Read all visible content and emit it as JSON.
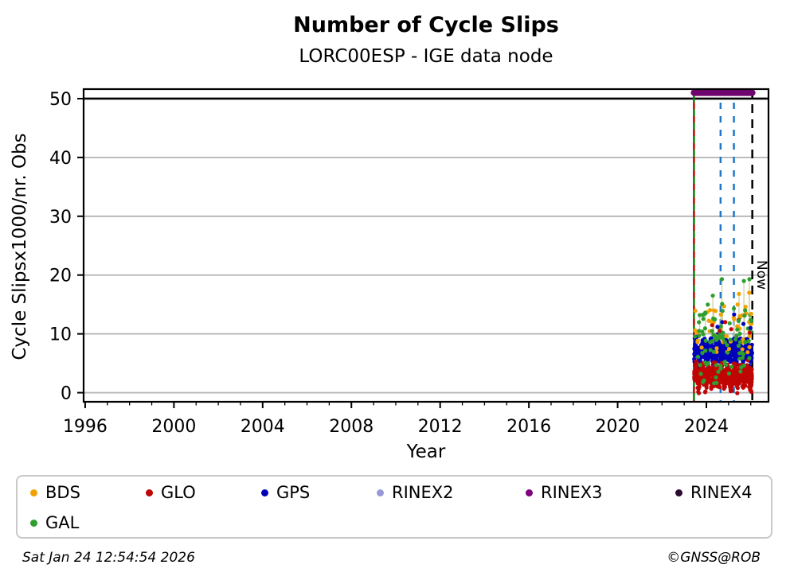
{
  "header": {
    "title": "Number of Cycle Slips",
    "subtitle": "LORC00ESP - IGE data node"
  },
  "footer": {
    "timestamp": "Sat Jan 24 12:54:54 2026",
    "credit": "©GNSS@ROB"
  },
  "legend": {
    "items": [
      {
        "label": "BDS",
        "color": "#f0a202"
      },
      {
        "label": "GLO",
        "color": "#c00505"
      },
      {
        "label": "GPS",
        "color": "#0000bb"
      },
      {
        "label": "RINEX2",
        "color": "#9a99d8"
      },
      {
        "label": "RINEX3",
        "color": "#800080"
      },
      {
        "label": "RINEX4",
        "color": "#2d0a31"
      },
      {
        "label": "GAL",
        "color": "#2e9e2e"
      }
    ]
  },
  "chart_data": {
    "type": "scatter",
    "title": "Number of Cycle Slips",
    "subtitle": "LORC00ESP - IGE data node",
    "xlabel": "Year",
    "ylabel": "Cycle Slipsx1000/nr. Obs",
    "xlim": [
      1995.93,
      2026.8
    ],
    "ylim": [
      -1.55,
      51.62
    ],
    "xticks": [
      1996,
      2000,
      2004,
      2008,
      2012,
      2016,
      2020,
      2024
    ],
    "xticks_minor_start": 1996,
    "xticks_minor_end": 2026,
    "xticks_minor_step": 1,
    "yticks": [
      0,
      10,
      20,
      30,
      40,
      50
    ],
    "grid": {
      "horizontal": true,
      "vertical": false,
      "color": "#b4b4b4"
    },
    "hline": {
      "y": 50,
      "color": "#000000"
    },
    "annotations": {
      "now_line": {
        "x": 2026.07,
        "style": "dashed",
        "color": "#000000",
        "label": "Now"
      },
      "event_lines": [
        {
          "x": 2023.44,
          "style": "solid",
          "color": "#0a7d0a",
          "name": "gal-data-start"
        },
        {
          "x": 2023.44,
          "style": "dashed",
          "color": "#cc1111",
          "name": "glo-data-start"
        },
        {
          "x": 2024.64,
          "style": "dashed",
          "color": "#1f77c8",
          "name": "event-2024"
        },
        {
          "x": 2025.24,
          "style": "dashed",
          "color": "#1f77c8",
          "name": "event-2025"
        }
      ],
      "rinex3_bar": {
        "x_start": 2023.44,
        "x_end": 2026.07,
        "y": 51.0,
        "color": "#70046e",
        "label": "RINEX3"
      }
    },
    "stem_style": {
      "color": "#cccc99",
      "base_y": 8.8,
      "min_value_for_stem": 12.5
    },
    "series": [
      {
        "name": "GPS",
        "color": "#0000bb",
        "kind": "band",
        "seed": 11,
        "band": {
          "n": 640,
          "x_start": 2023.45,
          "x_end": 2026.06,
          "center": 7.1,
          "noise": 1.0,
          "wave_amp": 0.85,
          "wave_cycles": 8,
          "min": 4.2,
          "max": 11.0
        },
        "outliers": [
          [
            2024.5,
            11.2
          ],
          [
            2024.72,
            12.0
          ],
          [
            2025.25,
            13.3
          ],
          [
            2025.67,
            11.7
          ],
          [
            2025.99,
            11.0
          ]
        ]
      },
      {
        "name": "GLO",
        "color": "#c00505",
        "kind": "band",
        "seed": 22,
        "band": {
          "n": 640,
          "x_start": 2023.45,
          "x_end": 2026.06,
          "center": 2.8,
          "noise": 1.0,
          "wave_amp": 0.8,
          "wave_cycles": 9,
          "min": -0.7,
          "max": 5.9
        },
        "outliers": [
          [
            2024.26,
            11.5
          ],
          [
            2024.6,
            10.5
          ],
          [
            2024.85,
            12.0
          ],
          [
            2025.12,
            10.8
          ],
          [
            2025.45,
            12.3
          ],
          [
            2025.95,
            10.2
          ]
        ]
      },
      {
        "name": "BDS",
        "color": "#f0a202",
        "kind": "sparse",
        "seed": 33,
        "sparse": {
          "n": 42,
          "x_start": 2023.45,
          "x_end": 2026.06,
          "ranges": [
            {
              "frac": 0.75,
              "lo": 6.5,
              "hi": 11.5
            },
            {
              "frac": 0.25,
              "lo": 11.5,
              "hi": 15.0
            }
          ]
        },
        "outliers": [
          [
            2024.22,
            12.1
          ],
          [
            2024.34,
            14.0
          ],
          [
            2024.65,
            13.3
          ],
          [
            2025.25,
            12.5
          ],
          [
            2025.47,
            16.8
          ],
          [
            2025.5,
            13.0
          ],
          [
            2025.93,
            17.0
          ],
          [
            2026.02,
            13.4
          ]
        ]
      },
      {
        "name": "GAL",
        "color": "#2e9e2e",
        "kind": "sparse",
        "seed": 44,
        "sparse": {
          "n": 80,
          "x_start": 2023.45,
          "x_end": 2026.06,
          "ranges": [
            {
              "frac": 0.5,
              "lo": 5.5,
              "hi": 10.5
            },
            {
              "frac": 0.3,
              "lo": 1.5,
              "hi": 5.5
            },
            {
              "frac": 0.2,
              "lo": 9.5,
              "hi": 15.5
            }
          ]
        },
        "outliers": [
          [
            2023.7,
            13.2
          ],
          [
            2023.95,
            13.6
          ],
          [
            2024.29,
            16.5
          ],
          [
            2024.31,
            12.6
          ],
          [
            2024.7,
            19.3
          ],
          [
            2024.71,
            15.1
          ],
          [
            2024.73,
            13.9
          ],
          [
            2025.05,
            11.8
          ],
          [
            2025.24,
            14.3
          ],
          [
            2025.45,
            12.2
          ],
          [
            2025.69,
            19.0
          ],
          [
            2025.72,
            13.1
          ],
          [
            2025.94,
            19.3
          ],
          [
            2026.0,
            12.4
          ]
        ]
      },
      {
        "name": "RINEX2",
        "color": "#9a99d8",
        "kind": "none",
        "outliers": []
      },
      {
        "name": "RINEX3",
        "color": "#800080",
        "kind": "top-bar",
        "outliers": []
      },
      {
        "name": "RINEX4",
        "color": "#2d0a31",
        "kind": "none",
        "outliers": []
      }
    ]
  }
}
